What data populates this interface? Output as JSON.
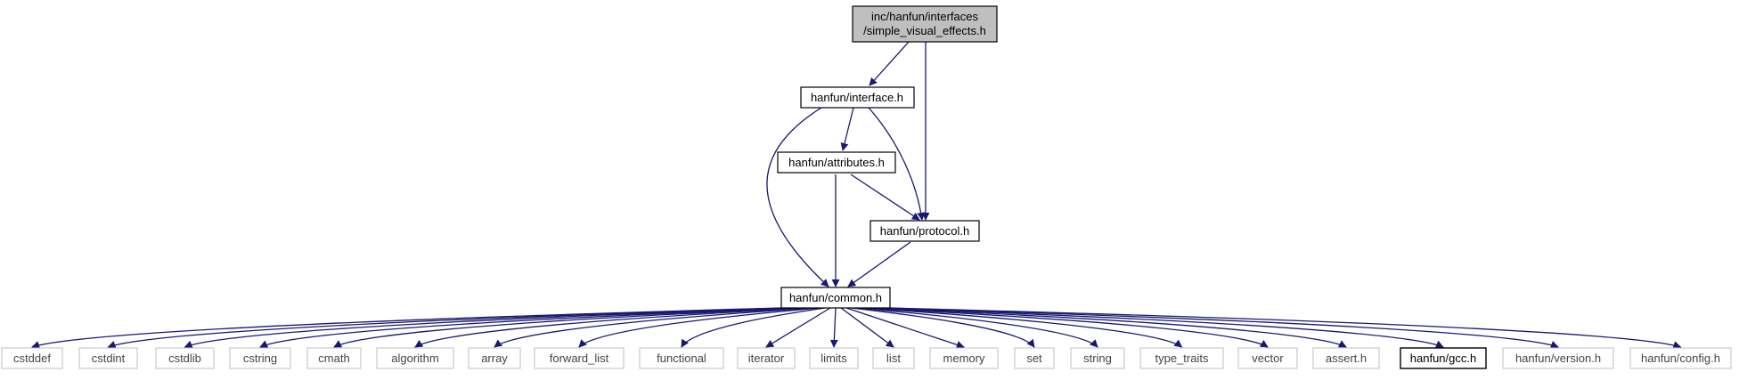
{
  "root": {
    "line1": "inc/hanfun/interfaces",
    "line2": "/simple_visual_effects.h"
  },
  "nodes": {
    "interface": "hanfun/interface.h",
    "attributes": "hanfun/attributes.h",
    "protocol": "hanfun/protocol.h",
    "common": "hanfun/common.h"
  },
  "leaves": [
    {
      "label": "cstddef",
      "documented": false
    },
    {
      "label": "cstdint",
      "documented": false
    },
    {
      "label": "cstdlib",
      "documented": false
    },
    {
      "label": "cstring",
      "documented": false
    },
    {
      "label": "cmath",
      "documented": false
    },
    {
      "label": "algorithm",
      "documented": false
    },
    {
      "label": "array",
      "documented": false
    },
    {
      "label": "forward_list",
      "documented": false
    },
    {
      "label": "functional",
      "documented": false
    },
    {
      "label": "iterator",
      "documented": false
    },
    {
      "label": "limits",
      "documented": false
    },
    {
      "label": "list",
      "documented": false
    },
    {
      "label": "memory",
      "documented": false
    },
    {
      "label": "set",
      "documented": false
    },
    {
      "label": "string",
      "documented": false
    },
    {
      "label": "type_traits",
      "documented": false
    },
    {
      "label": "vector",
      "documented": false
    },
    {
      "label": "assert.h",
      "documented": false
    },
    {
      "label": "hanfun/gcc.h",
      "documented": true
    },
    {
      "label": "hanfun/version.h",
      "documented": false
    },
    {
      "label": "hanfun/config.h",
      "documented": false
    }
  ],
  "colors": {
    "edge": "#191970",
    "root_fill": "#bfbfbf",
    "node_border": "#000000",
    "leaf_border": "#bfbfbf"
  }
}
